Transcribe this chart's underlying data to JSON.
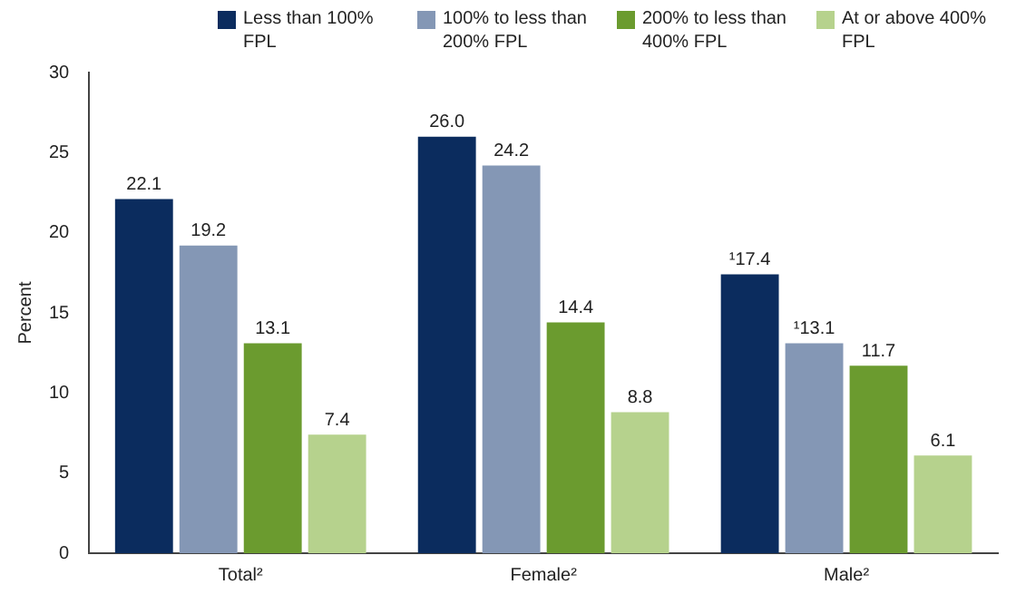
{
  "chart_data": {
    "type": "bar",
    "ylabel": "Percent",
    "categories": [
      "Total²",
      "Female²",
      "Male²"
    ],
    "series": [
      {
        "name": "Less than 100% FPL",
        "color": "#0b2c5e",
        "values": [
          22.1,
          26.0,
          17.4
        ],
        "value_labels": [
          "22.1",
          "26.0",
          "¹17.4"
        ]
      },
      {
        "name": "100% to less than 200% FPL",
        "color": "#8497b5",
        "values": [
          19.2,
          24.2,
          13.1
        ],
        "value_labels": [
          "19.2",
          "24.2",
          "¹13.1"
        ]
      },
      {
        "name": "200% to less than 400% FPL",
        "color": "#6b9b2f",
        "values": [
          13.1,
          14.4,
          11.7
        ],
        "value_labels": [
          "13.1",
          "14.4",
          "11.7"
        ]
      },
      {
        "name": "At or above 400% FPL",
        "color": "#b6d28d",
        "values": [
          7.4,
          8.8,
          6.1
        ],
        "value_labels": [
          "7.4",
          "8.8",
          "6.1"
        ]
      }
    ],
    "ylim": [
      0,
      30
    ],
    "yticks": [
      0,
      5,
      10,
      15,
      20,
      25,
      30
    ],
    "grid": false,
    "legend": "top right"
  }
}
